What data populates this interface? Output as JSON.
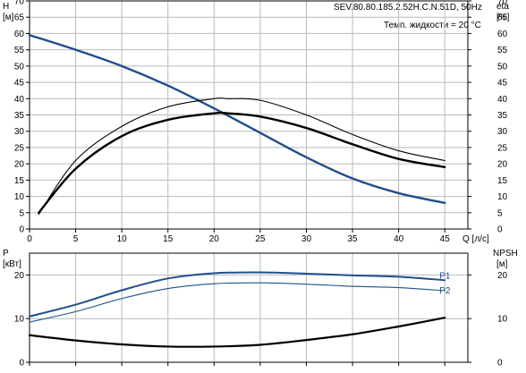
{
  "chart_data": [
    {
      "type": "line",
      "title": "SEV.80.80.185.2.52H.C.N.51D, 50Hz",
      "subtitle": "Темп. жидкости = 20 °C",
      "axes": {
        "x": {
          "label": "Q [л/с]",
          "range": [
            0,
            47.5
          ],
          "ticks": [
            0,
            5,
            10,
            15,
            20,
            25,
            30,
            35,
            40,
            45
          ],
          "grid": true
        },
        "y_left": {
          "label_top": "H",
          "label_unit": "[м]",
          "range": [
            0,
            70
          ],
          "ticks": [
            0,
            5,
            10,
            15,
            20,
            25,
            30,
            35,
            40,
            45,
            50,
            55,
            60,
            65,
            70
          ],
          "grid": true
        },
        "y_right": {
          "label_top": "eta",
          "label_unit": "[%]",
          "range": [
            0,
            70
          ],
          "ticks": [
            0,
            5,
            10,
            15,
            20,
            25,
            30,
            35,
            40,
            45,
            50,
            55,
            60,
            65,
            70
          ]
        }
      },
      "series": [
        {
          "name": "",
          "color": "#1f4e8c",
          "axis": "left",
          "x": [
            0,
            5,
            10,
            15,
            20,
            25,
            30,
            35,
            40,
            45
          ],
          "y": [
            59.5,
            55,
            50,
            44,
            37,
            29.5,
            22,
            15.5,
            11,
            8
          ]
        },
        {
          "name": "",
          "color": "#000000",
          "axis": "right",
          "x": [
            1,
            5,
            10,
            15,
            20,
            21.5,
            25,
            30,
            35,
            40,
            45
          ],
          "y": [
            5,
            18.5,
            28.5,
            33.5,
            35.5,
            35.5,
            34.5,
            31,
            26,
            21.5,
            19
          ]
        },
        {
          "name": "",
          "color": "#000000",
          "axis": "right",
          "x": [
            1,
            5,
            10,
            15,
            20,
            21.5,
            25,
            30,
            35,
            40,
            45
          ],
          "y": [
            4.5,
            21,
            31.5,
            37.5,
            40,
            40,
            39.5,
            35,
            29,
            24,
            21
          ]
        }
      ]
    },
    {
      "type": "line",
      "axes": {
        "x": {
          "range": [
            0,
            47.5
          ],
          "ticks": [
            0,
            5,
            10,
            15,
            20,
            25,
            30,
            35,
            40,
            45
          ],
          "grid": true
        },
        "y_left": {
          "label_top": "P",
          "label_unit": "[кВт]",
          "range": [
            0,
            25
          ],
          "ticks": [
            0,
            10,
            20
          ],
          "grid": true
        },
        "y_right": {
          "label_top": "NPSH",
          "label_unit": "[м]",
          "range": [
            0,
            25
          ],
          "ticks": [
            0,
            10,
            20
          ]
        }
      },
      "series": [
        {
          "name": "P1",
          "color": "#1f4e8c",
          "axis": "left",
          "x": [
            0,
            5,
            10,
            15,
            20,
            25,
            30,
            35,
            40,
            45
          ],
          "y": [
            10.5,
            13.2,
            16.5,
            19.2,
            20.4,
            20.6,
            20.3,
            19.9,
            19.6,
            18.8
          ]
        },
        {
          "name": "P2",
          "color": "#1f4e8c",
          "axis": "left",
          "x": [
            0,
            5,
            10,
            15,
            20,
            25,
            30,
            35,
            40,
            45
          ],
          "y": [
            9.2,
            11.6,
            14.6,
            16.9,
            18.0,
            18.2,
            17.9,
            17.4,
            17.1,
            16.4
          ]
        },
        {
          "name": "",
          "color": "#000000",
          "axis": "right",
          "x": [
            0,
            5,
            10,
            15,
            20,
            25,
            30,
            35,
            40,
            45
          ],
          "y": [
            6.2,
            5.0,
            4.1,
            3.6,
            3.6,
            4.0,
            5.1,
            6.4,
            8.2,
            10.2
          ]
        }
      ]
    }
  ]
}
